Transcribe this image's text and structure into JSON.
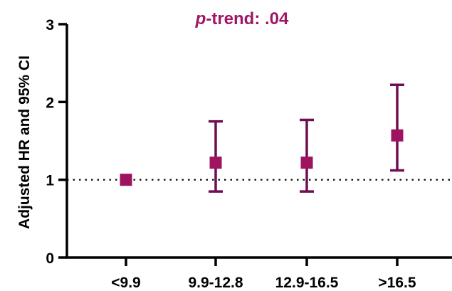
{
  "chart_data": {
    "type": "scatter",
    "title_prefix": "p",
    "title_suffix": "-trend: .04",
    "ylabel": "Adjusted HR and 95% CI",
    "xlabel": "",
    "categories": [
      "<9.9",
      "9.9-12.8",
      "12.9-16.5",
      ">16.5"
    ],
    "series": [
      {
        "values": [
          1.0,
          1.22,
          1.22,
          1.57
        ],
        "ci_lower": [
          null,
          0.85,
          0.85,
          1.12
        ],
        "ci_upper": [
          null,
          1.75,
          1.77,
          2.22
        ]
      }
    ],
    "reference_line": 1,
    "ylim": [
      0,
      3
    ],
    "yticks": [
      "0",
      "1",
      "2",
      "3"
    ],
    "yticks_values": [
      0,
      1,
      2,
      3
    ],
    "grid": false,
    "marker_color": "#9e1461",
    "errorbar_color": "#6e0f52",
    "title_color": "#a01665"
  }
}
